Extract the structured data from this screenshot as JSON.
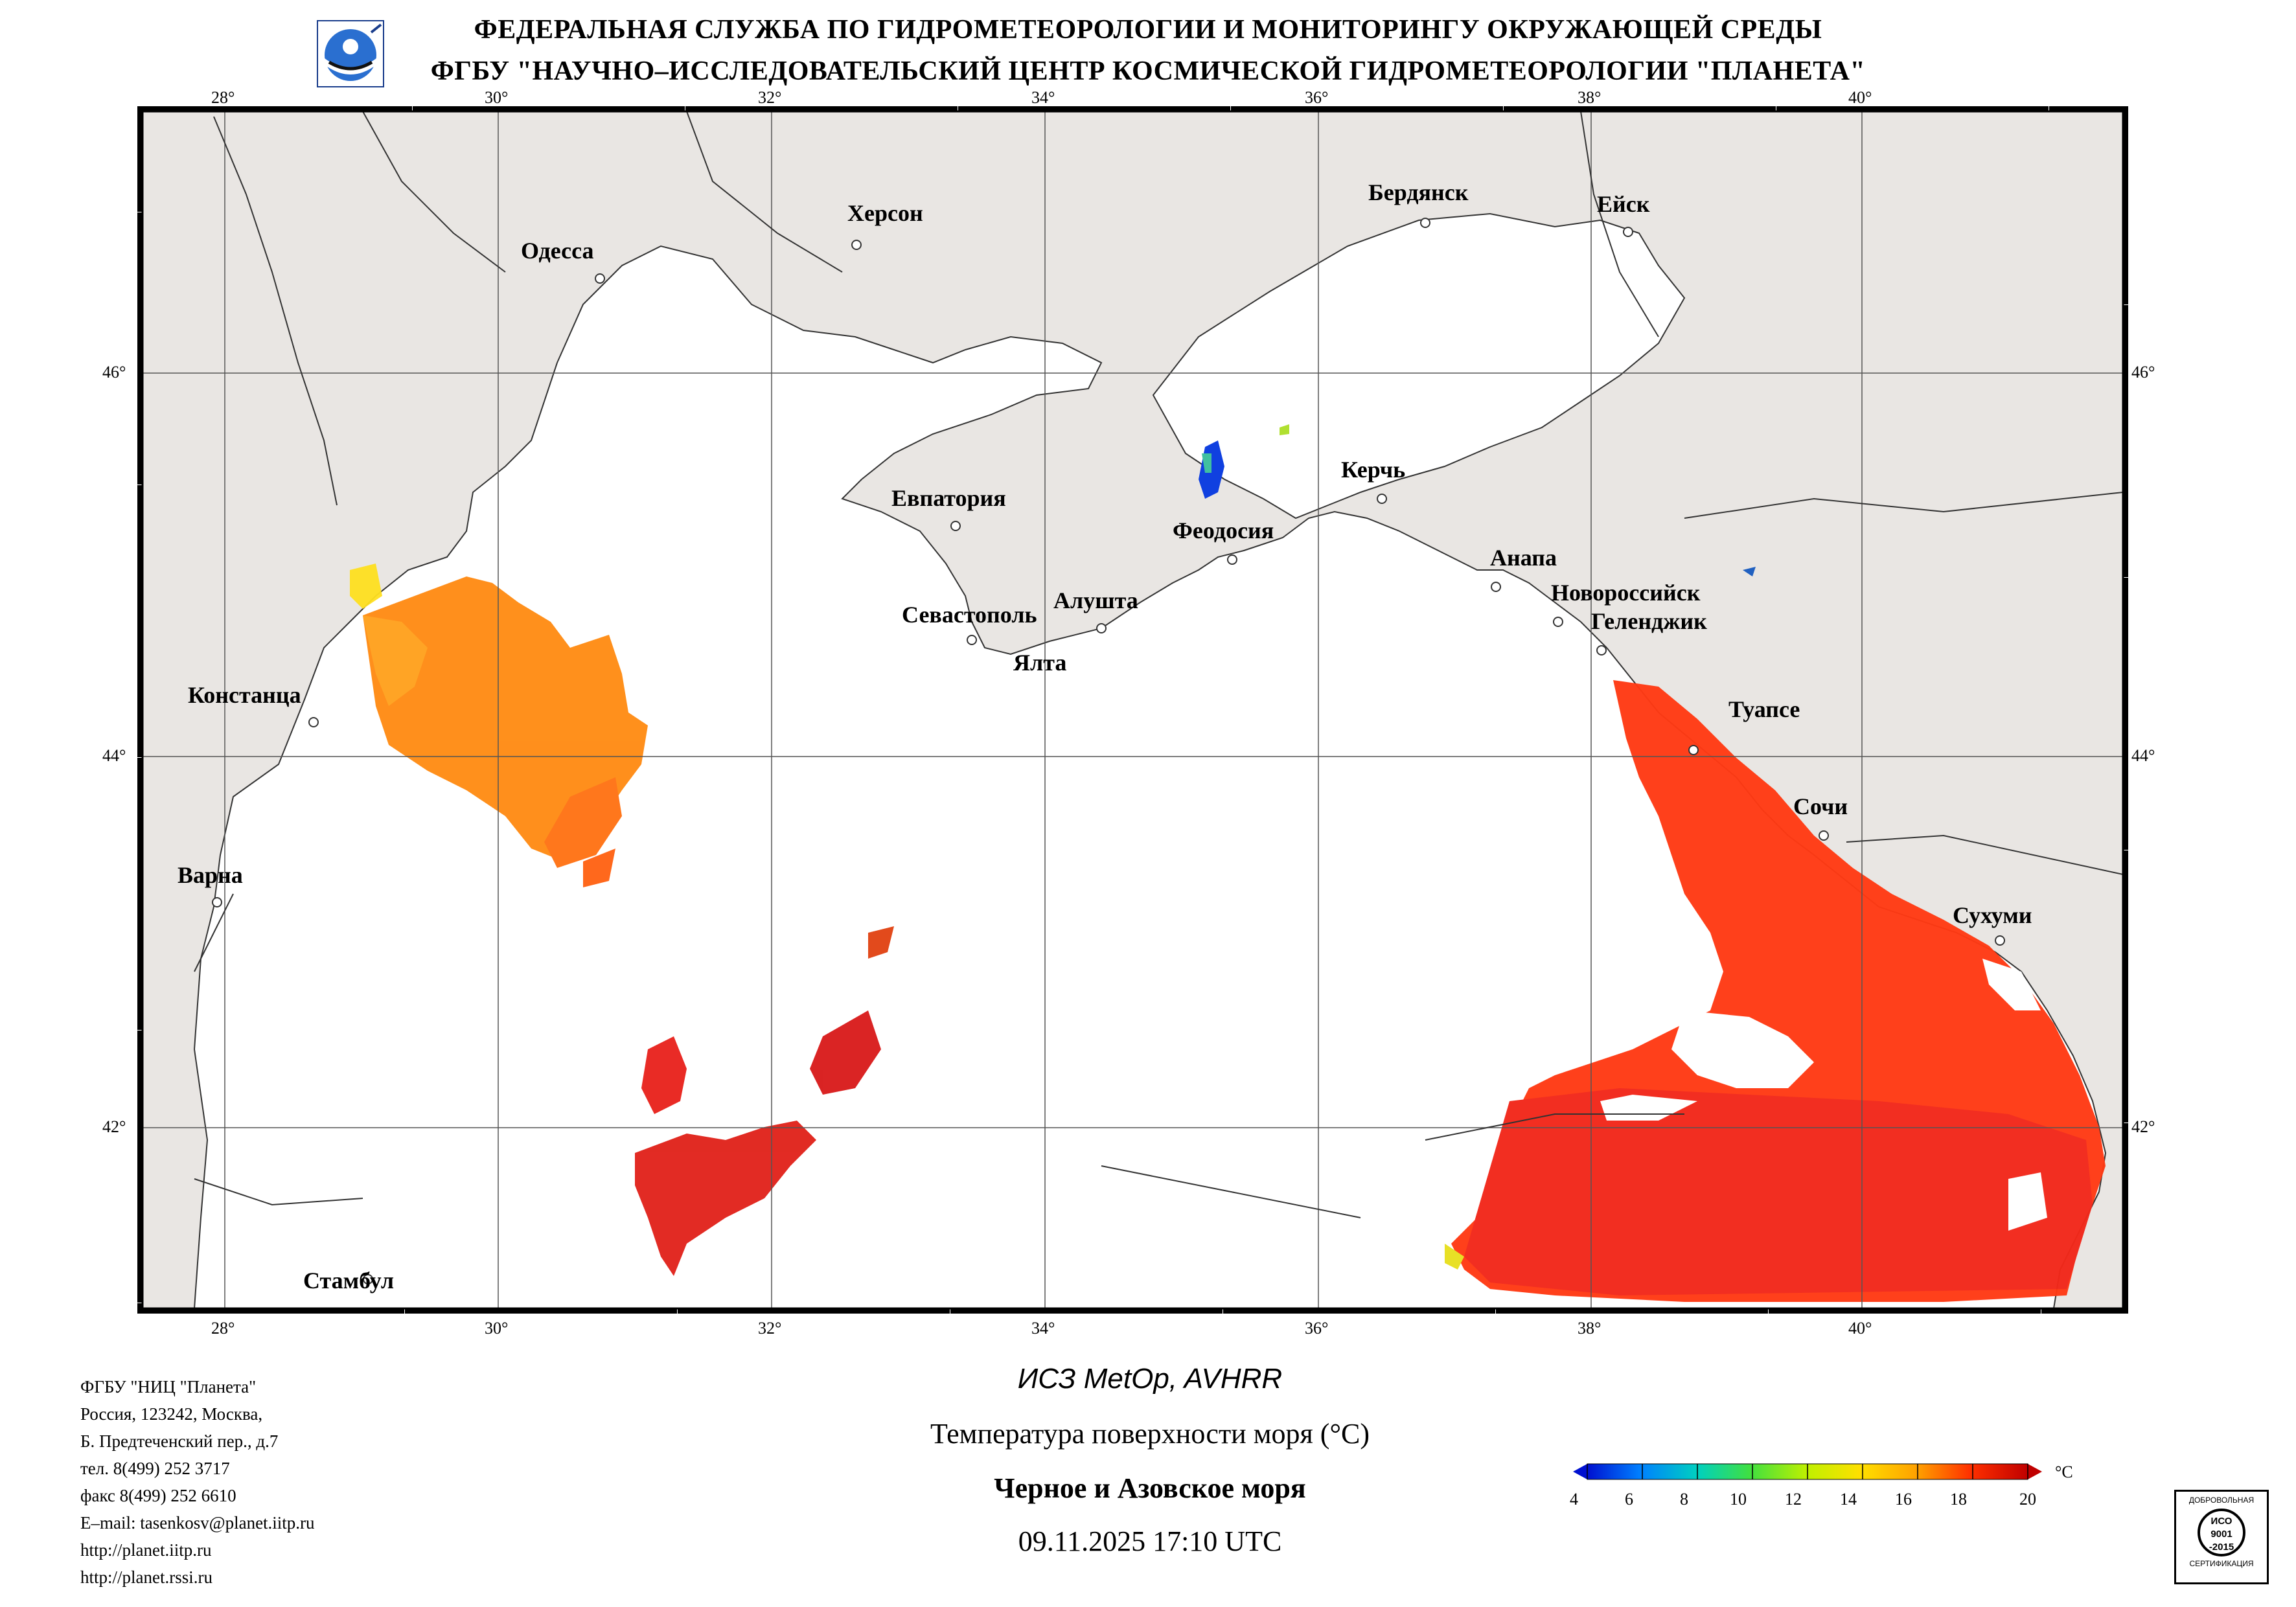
{
  "header": {
    "line1": "ФЕДЕРАЛЬНАЯ СЛУЖБА ПО ГИДРОМЕТЕОРОЛОГИИ И МОНИТОРИНГУ ОКРУЖАЮЩЕЙ СРЕДЫ",
    "line2": "ФГБУ \"НАУЧНО–ИССЛЕДОВАТЕЛЬСКИЙ ЦЕНТР КОСМИЧЕСКОЙ ГИДРОМЕТЕОРОЛОГИИ \"ПЛАНЕТА\""
  },
  "map": {
    "lon_labels": [
      "28°",
      "30°",
      "32°",
      "34°",
      "36°",
      "38°",
      "40°"
    ],
    "lat_labels": [
      "46°",
      "44°",
      "42°"
    ],
    "cities": {
      "kherson": "Херсон",
      "odessa": "Одесса",
      "berdyansk": "Бердянск",
      "yeysk": "Ейск",
      "evpatoria": "Евпатория",
      "feodosia": "Феодосия",
      "kerch": "Керчь",
      "anapa": "Анапа",
      "novorossiysk": "Новороссийск",
      "gelendzhik": "Геленджик",
      "sevastopol": "Севастополь",
      "alushta": "Алушта",
      "yalta": "Ялта",
      "constanta": "Констанца",
      "tuapse": "Туапсе",
      "sochi": "Сочи",
      "varna": "Варна",
      "sukhumi": "Сухуми",
      "istanbul": "Стамбул"
    }
  },
  "footer": {
    "info": [
      "ФГБУ \"НИЦ \"Планета\"",
      "Россия, 123242, Москва,",
      "Б. Предтеченский пер., д.7",
      "тел. 8(499) 252 3717",
      "факс 8(499) 252 6610",
      "E–mail: tasenkosv@planet.iitp.ru",
      "http://planet.iitp.ru",
      "http://planet.rssi.ru"
    ],
    "satellite": "ИСЗ MetOp, AVHRR",
    "parameter": "Температура поверхности моря (°С)",
    "region": "Черное и Азовское моря",
    "datetime": "09.11.2025 17:10 UTC"
  },
  "colorbar": {
    "unit": "°С",
    "ticks": [
      "4",
      "6",
      "8",
      "10",
      "12",
      "14",
      "16",
      "18",
      "20"
    ],
    "min": 4,
    "max": 20,
    "colors": [
      "#0010d0",
      "#0080ff",
      "#00d0c0",
      "#40e040",
      "#c0f000",
      "#ffe000",
      "#ffa000",
      "#ff5000",
      "#ff1800",
      "#c00000"
    ]
  },
  "cert": {
    "text_top": "ДОБРОВОЛЬНАЯ",
    "text_mid1": "ИСО",
    "text_mid2": "9001",
    "text_mid3": "-2015",
    "text_bottom": "СЕРТИФИКАЦИЯ"
  }
}
